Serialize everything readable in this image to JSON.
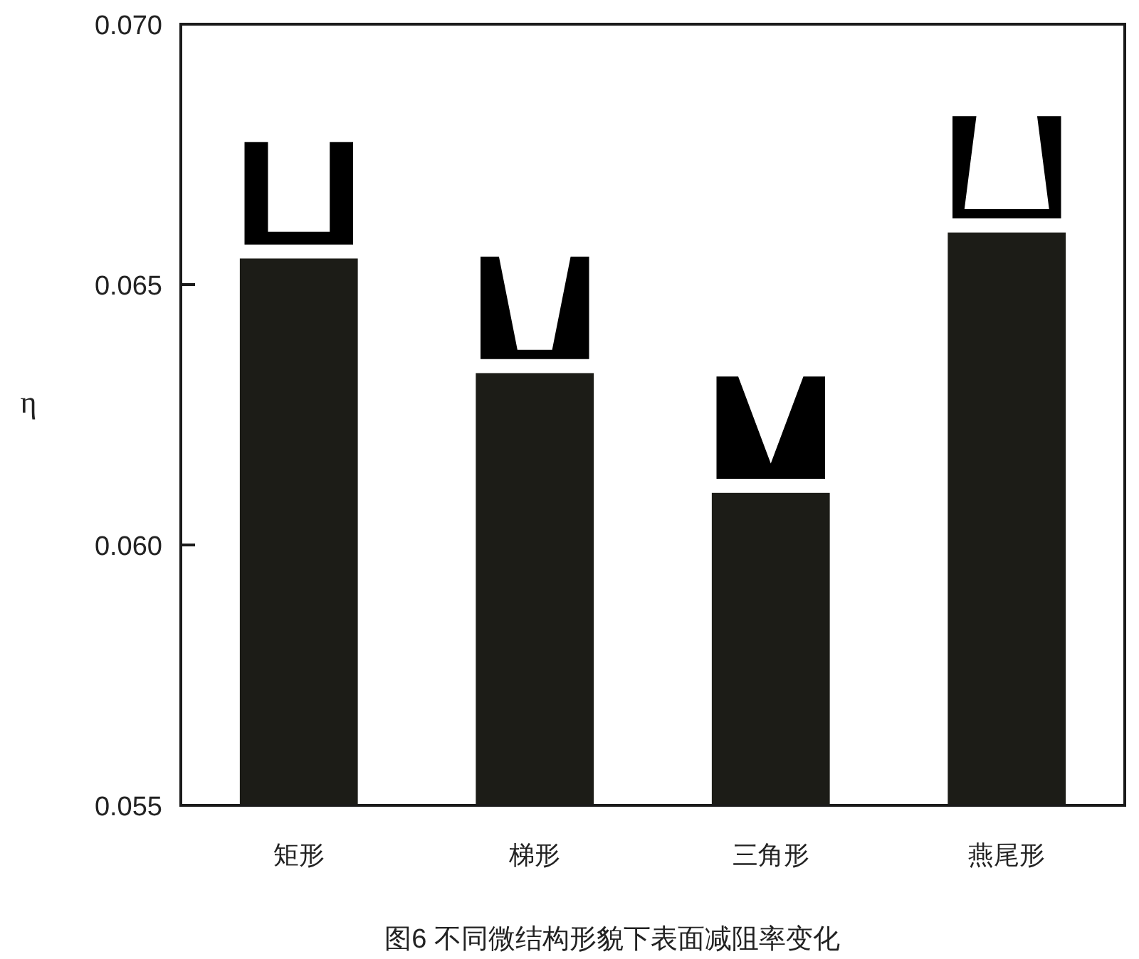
{
  "chart_data": {
    "type": "bar",
    "title": "图6 不同微结构形貌下表面减阻率变化",
    "ylabel": "η",
    "categories": [
      "矩形",
      "梯形",
      "三角形",
      "燕尾形"
    ],
    "values": [
      0.0655,
      0.0633,
      0.061,
      0.066
    ],
    "color": "#1c1c17",
    "ylim": [
      0.055,
      0.07
    ],
    "yticks": [
      0.055,
      {
        "value": 0.06,
        "label": "0.060"
      },
      0.065,
      {
        "value": 0.07,
        "label": "0.070"
      }
    ]
  }
}
